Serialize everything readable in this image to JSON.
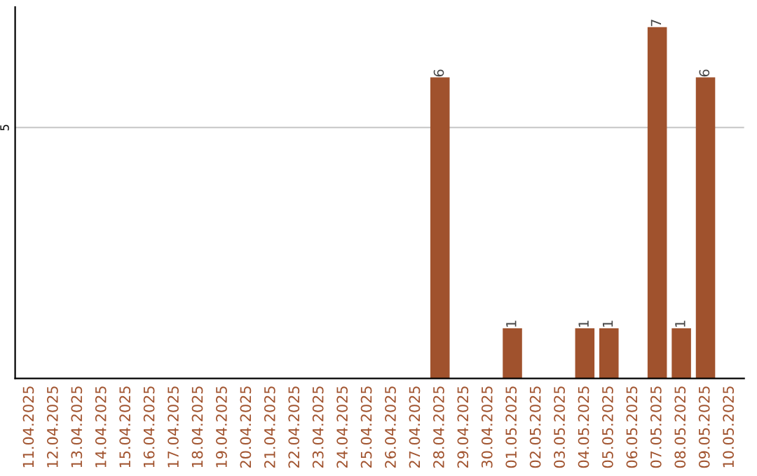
{
  "chart_data": {
    "type": "bar",
    "categories": [
      "11.04.2025",
      "12.04.2025",
      "13.04.2025",
      "14.04.2025",
      "15.04.2025",
      "16.04.2025",
      "17.04.2025",
      "18.04.2025",
      "19.04.2025",
      "20.04.2025",
      "21.04.2025",
      "22.04.2025",
      "23.04.2025",
      "24.04.2025",
      "25.04.2025",
      "26.04.2025",
      "27.04.2025",
      "28.04.2025",
      "29.04.2025",
      "30.04.2025",
      "01.05.2025",
      "02.05.2025",
      "03.05.2025",
      "04.05.2025",
      "05.05.2025",
      "06.05.2025",
      "07.05.2025",
      "08.05.2025",
      "09.05.2025",
      "10.05.2025"
    ],
    "values": [
      null,
      null,
      null,
      null,
      null,
      null,
      null,
      null,
      null,
      null,
      null,
      null,
      null,
      null,
      null,
      null,
      null,
      6,
      null,
      null,
      1,
      null,
      null,
      1,
      1,
      null,
      7,
      1,
      6,
      null
    ],
    "color": "#a0522d",
    "ylim": [
      0,
      7.4
    ],
    "yticks": [
      5
    ],
    "grid": "y",
    "data_labels": true
  }
}
